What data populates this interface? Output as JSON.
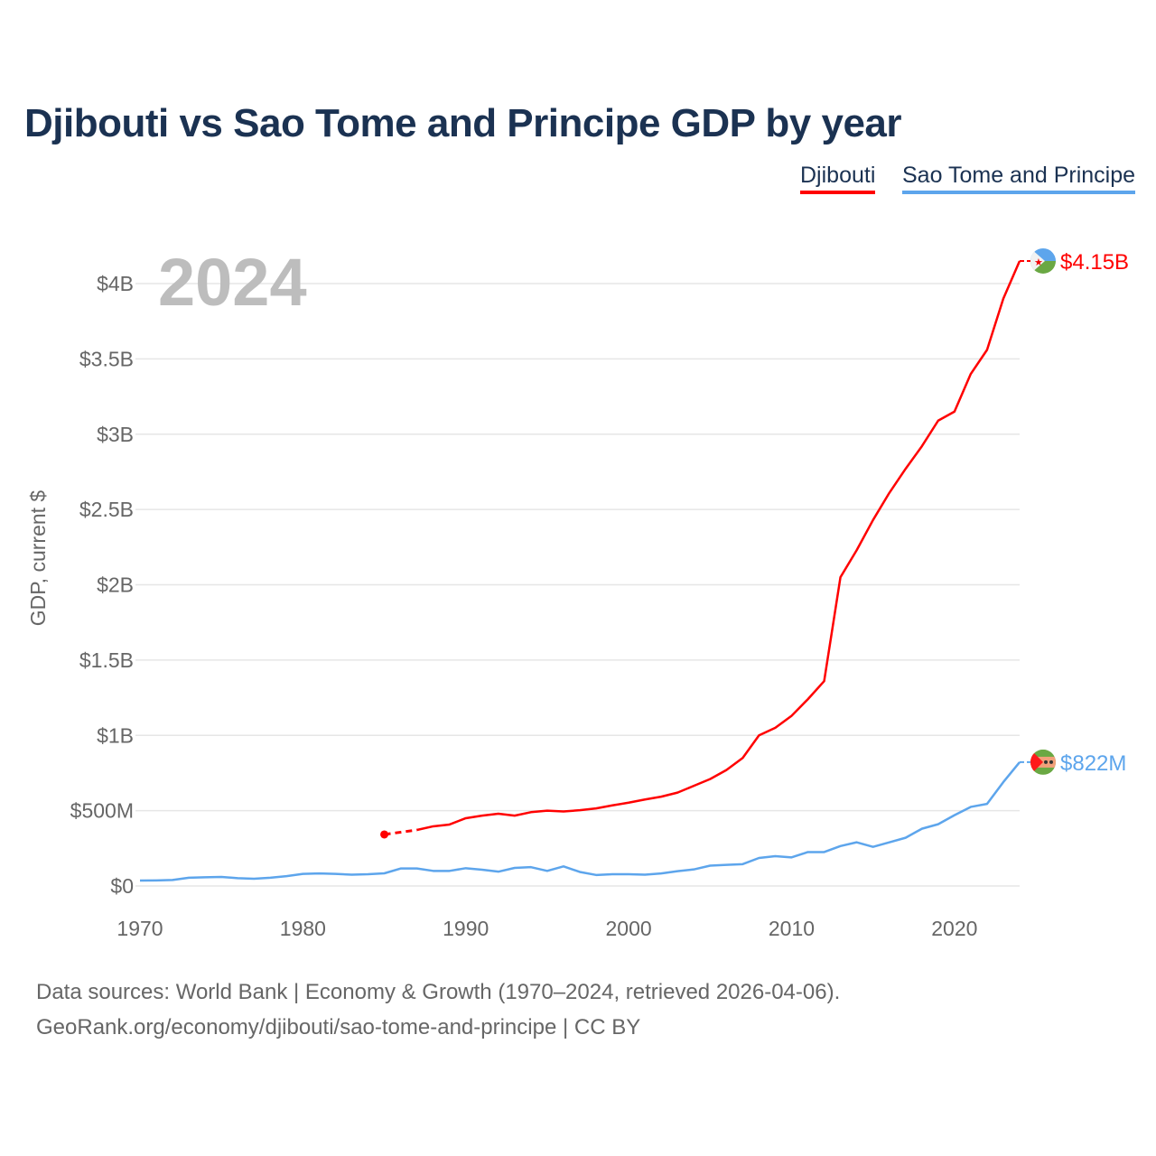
{
  "title": "Djibouti vs Sao Tome and Principe GDP by year",
  "legend": [
    "Djibouti",
    "Sao Tome and Principe"
  ],
  "year_watermark": "2024",
  "footer": {
    "line1": "Data sources: World Bank | Economy & Growth (1970–2024, retrieved 2026-04-06).",
    "line2": "GeoRank.org/economy/djibouti/sao-tome-and-principe | CC BY"
  },
  "chart_data": {
    "type": "line",
    "title": "Djibouti vs Sao Tome and Principe GDP by year",
    "xlabel": "",
    "ylabel": "GDP, current $",
    "xlim": [
      1970,
      2024
    ],
    "ylim": [
      0,
      4.0
    ],
    "y_unit": "billion USD",
    "grid": true,
    "legend_position": "top-right",
    "x_ticks": [
      1970,
      1980,
      1990,
      2000,
      2010,
      2020
    ],
    "x_tick_labels": [
      "1970",
      "1980",
      "1990",
      "2000",
      "2010",
      "2020"
    ],
    "y_ticks": [
      0,
      0.5,
      1,
      1.5,
      2,
      2.5,
      3,
      3.5,
      4
    ],
    "y_tick_labels": [
      "$0",
      "$500M",
      "$1B",
      "$1.5B",
      "$2B",
      "$2.5B",
      "$3B",
      "$3.5B",
      "$4B"
    ],
    "x": [
      1970,
      1971,
      1972,
      1973,
      1974,
      1975,
      1976,
      1977,
      1978,
      1979,
      1980,
      1981,
      1982,
      1983,
      1984,
      1985,
      1986,
      1987,
      1988,
      1989,
      1990,
      1991,
      1992,
      1993,
      1994,
      1995,
      1996,
      1997,
      1998,
      1999,
      2000,
      2001,
      2002,
      2003,
      2004,
      2005,
      2006,
      2007,
      2008,
      2009,
      2010,
      2011,
      2012,
      2013,
      2014,
      2015,
      2016,
      2017,
      2018,
      2019,
      2020,
      2021,
      2022,
      2023,
      2024
    ],
    "series": [
      {
        "name": "Djibouti",
        "color": "#ff0000",
        "end_label": "$4.15B",
        "values": [
          null,
          null,
          null,
          null,
          null,
          null,
          null,
          null,
          null,
          null,
          null,
          null,
          null,
          null,
          null,
          0.342,
          null,
          0.372,
          0.396,
          0.408,
          0.45,
          0.467,
          0.48,
          0.467,
          0.49,
          0.5,
          0.495,
          0.503,
          0.515,
          0.535,
          0.553,
          0.574,
          0.593,
          0.62,
          0.665,
          0.71,
          0.77,
          0.85,
          1.0,
          1.05,
          1.13,
          1.24,
          1.36,
          2.05,
          2.23,
          2.43,
          2.61,
          2.77,
          2.92,
          3.09,
          3.15,
          3.4,
          3.56,
          3.9,
          4.15
        ]
      },
      {
        "name": "Sao Tome and Principe",
        "color": "#5da5ec",
        "end_label": "$822M",
        "values": [
          0.036,
          0.037,
          0.04,
          0.055,
          0.058,
          0.06,
          0.052,
          0.048,
          0.055,
          0.065,
          0.08,
          0.083,
          0.08,
          0.075,
          0.078,
          0.084,
          0.116,
          0.116,
          0.1,
          0.1,
          0.118,
          0.108,
          0.095,
          0.12,
          0.125,
          0.1,
          0.13,
          0.093,
          0.073,
          0.078,
          0.078,
          0.075,
          0.083,
          0.098,
          0.11,
          0.135,
          0.14,
          0.145,
          0.186,
          0.198,
          0.19,
          0.225,
          0.225,
          0.265,
          0.29,
          0.26,
          0.29,
          0.32,
          0.38,
          0.41,
          0.47,
          0.525,
          0.545,
          0.69,
          0.822
        ]
      }
    ]
  }
}
